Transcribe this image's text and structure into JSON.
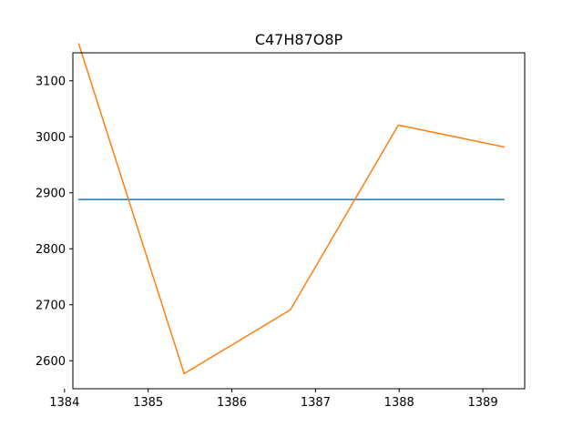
{
  "chart_data": {
    "type": "line",
    "title": "C47H87O8P",
    "xlabel": "",
    "ylabel": "",
    "xlim": [
      1384.1,
      1389.5
    ],
    "ylim": [
      2550,
      3150
    ],
    "x_ticks": [
      1384,
      1385,
      1386,
      1387,
      1388,
      1389
    ],
    "y_ticks": [
      2600,
      2700,
      2800,
      2900,
      3000,
      3100
    ],
    "grid": false,
    "legend": "none",
    "series": [
      {
        "color": "#1f77b4",
        "x": [
          1384.17,
          1389.25
        ],
        "y": [
          2888,
          2888
        ]
      },
      {
        "color": "#ff7f0e",
        "x": [
          1384.17,
          1385.43,
          1386.7,
          1387.99,
          1389.25
        ],
        "y": [
          3166,
          2577,
          2691,
          3021,
          2982
        ]
      }
    ]
  }
}
